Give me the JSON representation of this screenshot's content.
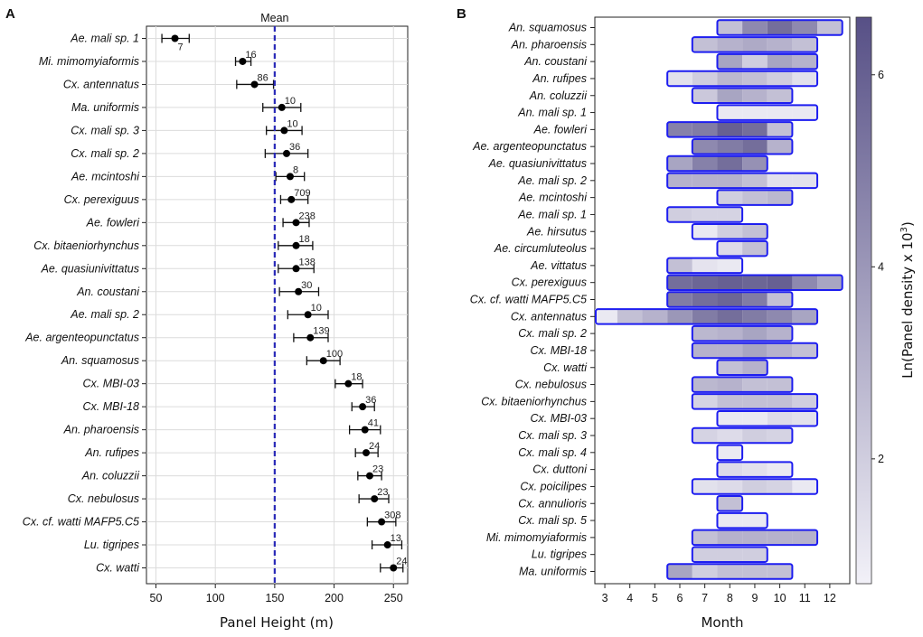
{
  "chart_data": [
    {
      "panel": "A",
      "type": "scatter",
      "xlabel": "Panel Height (m)",
      "ylabel": "",
      "xlim": [
        42,
        262
      ],
      "xticks": [
        50,
        100,
        150,
        200,
        250
      ],
      "mean_label": "Mean",
      "mean_value": 150,
      "points": [
        {
          "species": "Ae. mali sp. 1",
          "mean": 66,
          "lo": 55,
          "hi": 78,
          "n": "7"
        },
        {
          "species": "Mi. mimomyiaformis",
          "mean": 123,
          "lo": 117,
          "hi": 130,
          "n": "16"
        },
        {
          "species": "Cx. antennatus",
          "mean": 133,
          "lo": 118,
          "hi": 149,
          "n": "86"
        },
        {
          "species": "Ma. uniformis",
          "mean": 156,
          "lo": 140,
          "hi": 172,
          "n": "10"
        },
        {
          "species": "Cx. mali sp. 3",
          "mean": 158,
          "lo": 143,
          "hi": 173,
          "n": "10"
        },
        {
          "species": "Cx. mali sp. 2",
          "mean": 160,
          "lo": 142,
          "hi": 178,
          "n": "36"
        },
        {
          "species": "Ae. mcintoshi",
          "mean": 163,
          "lo": 151,
          "hi": 175,
          "n": "8"
        },
        {
          "species": "Cx. perexiguus",
          "mean": 164,
          "lo": 155,
          "hi": 178,
          "n": "709"
        },
        {
          "species": "Ae. fowleri",
          "mean": 168,
          "lo": 157,
          "hi": 179,
          "n": "238"
        },
        {
          "species": "Cx. bitaeniorhynchus",
          "mean": 168,
          "lo": 153,
          "hi": 182,
          "n": "18"
        },
        {
          "species": "Ae. quasiunivittatus",
          "mean": 168,
          "lo": 153,
          "hi": 183,
          "n": "138"
        },
        {
          "species": "An. coustani",
          "mean": 170,
          "lo": 154,
          "hi": 187,
          "n": "30"
        },
        {
          "species": "Ae. mali sp. 2",
          "mean": 178,
          "lo": 161,
          "hi": 195,
          "n": "10"
        },
        {
          "species": "Ae. argenteopunctatus",
          "mean": 180,
          "lo": 166,
          "hi": 195,
          "n": "139"
        },
        {
          "species": "An. squamosus",
          "mean": 191,
          "lo": 177,
          "hi": 205,
          "n": "100"
        },
        {
          "species": "Cx. MBI-03",
          "mean": 212,
          "lo": 201,
          "hi": 224,
          "n": "18"
        },
        {
          "species": "Cx. MBI-18",
          "mean": 224,
          "lo": 215,
          "hi": 234,
          "n": "36"
        },
        {
          "species": "An. pharoensis",
          "mean": 226,
          "lo": 213,
          "hi": 239,
          "n": "41"
        },
        {
          "species": "An. rufipes",
          "mean": 227,
          "lo": 218,
          "hi": 237,
          "n": "24"
        },
        {
          "species": "An. coluzzii",
          "mean": 230,
          "lo": 220,
          "hi": 240,
          "n": "23"
        },
        {
          "species": "Cx. nebulosus",
          "mean": 234,
          "lo": 221,
          "hi": 246,
          "n": "23"
        },
        {
          "species": "Cx. cf. watti MAFP5.C5",
          "mean": 240,
          "lo": 228,
          "hi": 252,
          "n": "308"
        },
        {
          "species": "Lu. tigripes",
          "mean": 245,
          "lo": 232,
          "hi": 257,
          "n": "13"
        },
        {
          "species": "Cx. watti",
          "mean": 250,
          "lo": 239,
          "hi": 258,
          "n": "24"
        }
      ]
    },
    {
      "panel": "B",
      "type": "heatmap",
      "xlabel": "Month",
      "xlim": [
        2.6,
        12.8
      ],
      "xticks": [
        3,
        4,
        5,
        6,
        7,
        8,
        9,
        10,
        11,
        12
      ],
      "colorbar_label": "Ln(Panel density x 10",
      "colorbar_label_sup": "3",
      "colorbar_label_end": ")",
      "colorbar_range": [
        0.7,
        6.6
      ],
      "colorbar_ticks": [
        2,
        4,
        6
      ],
      "color_low": "#f2f1f8",
      "color_high": "#575086",
      "outline_color": "#1d1df0",
      "rows": [
        {
          "species": "An. squamosus",
          "start": 7.5,
          "end": 12.5,
          "values": [
            2.5,
            4.5,
            5.5,
            4.5,
            2.5
          ]
        },
        {
          "species": "An. pharoensis",
          "start": 6.5,
          "end": 11.5,
          "values": [
            2.5,
            3.0,
            3.3,
            3.0,
            2.5
          ]
        },
        {
          "species": "An. coustani",
          "start": 7.5,
          "end": 11.5,
          "values": [
            3.5,
            2.0,
            3.5,
            3.0
          ]
        },
        {
          "species": "An. rufipes",
          "start": 5.5,
          "end": 11.5,
          "values": [
            1.3,
            2.0,
            2.8,
            2.5,
            2.0,
            1.3
          ]
        },
        {
          "species": "An. coluzzii",
          "start": 6.5,
          "end": 10.5,
          "values": [
            2.2,
            3.5,
            3.0,
            2.5
          ]
        },
        {
          "species": "An. mali sp. 1",
          "start": 7.5,
          "end": 11.5,
          "values": [
            1.0,
            1.0,
            1.0,
            1.0
          ]
        },
        {
          "species": "Ae. fowleri",
          "start": 5.5,
          "end": 10.5,
          "values": [
            4.8,
            5.0,
            6.0,
            5.5,
            2.5
          ]
        },
        {
          "species": "Ae. argenteopunctatus",
          "start": 6.5,
          "end": 10.5,
          "values": [
            4.5,
            5.0,
            5.5,
            3.0
          ]
        },
        {
          "species": "Ae. quasiunivittatus",
          "start": 5.5,
          "end": 9.5,
          "values": [
            3.5,
            4.8,
            5.5,
            4.2
          ]
        },
        {
          "species": "Ae. mali sp. 2",
          "start": 5.5,
          "end": 11.5,
          "values": [
            3.0,
            3.0,
            3.0,
            2.5,
            1.3,
            1.3
          ]
        },
        {
          "species": "Ae. mcintoshi",
          "start": 7.5,
          "end": 10.5,
          "values": [
            2.0,
            2.5,
            2.8
          ]
        },
        {
          "species": "Ae. mali sp. 1",
          "start": 5.5,
          "end": 8.5,
          "values": [
            2.0,
            1.8,
            1.8
          ]
        },
        {
          "species": "Ae. hirsutus",
          "start": 6.5,
          "end": 9.5,
          "values": [
            1.0,
            2.0,
            2.5
          ]
        },
        {
          "species": "Ae. circumluteolus",
          "start": 7.5,
          "end": 9.5,
          "values": [
            1.5,
            2.5
          ]
        },
        {
          "species": "Ae. vittatus",
          "start": 5.5,
          "end": 8.5,
          "values": [
            2.5,
            1.2,
            1.0
          ]
        },
        {
          "species": "Cx. perexiguus",
          "start": 5.5,
          "end": 12.5,
          "values": [
            5.5,
            5.8,
            6.0,
            5.8,
            6.0,
            4.5,
            3.5
          ]
        },
        {
          "species": "Cx. cf. watti MAFP5.C5",
          "start": 5.5,
          "end": 10.5,
          "values": [
            5.0,
            5.5,
            5.8,
            5.0,
            2.5
          ]
        },
        {
          "species": "Cx. antennatus",
          "start": 2.5,
          "end": 11.5,
          "values": [
            1.0,
            2.5,
            3.0,
            4.0,
            5.0,
            5.5,
            5.0,
            4.5,
            3.5
          ]
        },
        {
          "species": "Cx. mali sp. 2",
          "start": 6.5,
          "end": 10.5,
          "values": [
            2.8,
            3.0,
            3.5,
            3.0
          ]
        },
        {
          "species": "Cx. MBI-18",
          "start": 6.5,
          "end": 11.5,
          "values": [
            3.0,
            3.0,
            3.5,
            3.0,
            2.5
          ]
        },
        {
          "species": "Cx. watti",
          "start": 7.5,
          "end": 9.5,
          "values": [
            2.5,
            3.0
          ]
        },
        {
          "species": "Cx. nebulosus",
          "start": 6.5,
          "end": 10.5,
          "values": [
            2.8,
            3.0,
            2.5,
            2.5
          ]
        },
        {
          "species": "Cx. bitaeniorhynchus",
          "start": 6.5,
          "end": 11.5,
          "values": [
            1.8,
            2.5,
            2.5,
            2.5,
            2.0
          ]
        },
        {
          "species": "Cx. MBI-03",
          "start": 7.5,
          "end": 11.5,
          "values": [
            1.0,
            1.0,
            1.5,
            1.3
          ]
        },
        {
          "species": "Cx. mali sp. 3",
          "start": 6.5,
          "end": 10.5,
          "values": [
            1.8,
            1.5,
            2.0,
            1.8
          ]
        },
        {
          "species": "Cx. mali sp. 4",
          "start": 7.5,
          "end": 8.5,
          "values": [
            1.0
          ]
        },
        {
          "species": "Cx. duttoni",
          "start": 7.5,
          "end": 10.5,
          "values": [
            1.5,
            1.3,
            1.0
          ]
        },
        {
          "species": "Cx. poicilipes",
          "start": 6.5,
          "end": 11.5,
          "values": [
            1.3,
            1.5,
            2.0,
            1.8,
            1.0
          ]
        },
        {
          "species": "Cx. annulioris",
          "start": 7.5,
          "end": 8.5,
          "values": [
            2.5
          ]
        },
        {
          "species": "Cx. mali sp. 5",
          "start": 7.5,
          "end": 9.5,
          "values": [
            1.0,
            1.0
          ]
        },
        {
          "species": "Mi. mimomyiaformis",
          "start": 6.5,
          "end": 11.5,
          "values": [
            2.5,
            3.0,
            3.0,
            3.0,
            3.0
          ]
        },
        {
          "species": "Lu. tigripes",
          "start": 6.5,
          "end": 9.5,
          "values": [
            2.0,
            2.0,
            2.0
          ]
        },
        {
          "species": "Ma. uniformis",
          "start": 5.5,
          "end": 10.5,
          "values": [
            3.5,
            2.0,
            2.5,
            2.5,
            2.5
          ]
        }
      ]
    }
  ]
}
